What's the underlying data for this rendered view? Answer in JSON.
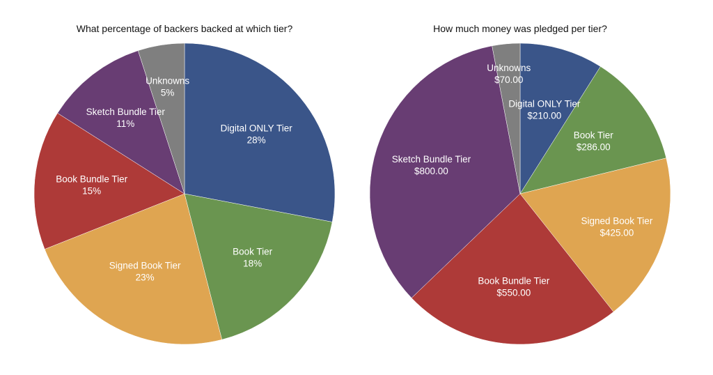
{
  "chart_data": [
    {
      "type": "pie",
      "title": "What percentage of backers backed at which tier?",
      "slices": [
        {
          "label": "Digital ONLY Tier",
          "value": 28,
          "display": "28%",
          "color": "#3A5589"
        },
        {
          "label": "Book Tier",
          "value": 18,
          "display": "18%",
          "color": "#6A9550"
        },
        {
          "label": "Signed Book Tier",
          "value": 23,
          "display": "23%",
          "color": "#DFA551"
        },
        {
          "label": "Book Bundle Tier",
          "value": 15,
          "display": "15%",
          "color": "#AE3A38"
        },
        {
          "label": "Sketch Bundle Tier",
          "value": 11,
          "display": "11%",
          "color": "#683D73"
        },
        {
          "label": "Unknowns",
          "value": 5,
          "display": "5%",
          "color": "#7F7F7F"
        }
      ]
    },
    {
      "type": "pie",
      "title": "How much money was pledged per tier?",
      "slices": [
        {
          "label": "Digital ONLY Tier",
          "value": 210.0,
          "display": "$210.00",
          "color": "#3A5589"
        },
        {
          "label": "Book Tier",
          "value": 286.0,
          "display": "$286.00",
          "color": "#6A9550"
        },
        {
          "label": "Signed Book Tier",
          "value": 425.0,
          "display": "$425.00",
          "color": "#DFA551"
        },
        {
          "label": "Book Bundle Tier",
          "value": 550.0,
          "display": "$550.00",
          "color": "#AE3A38"
        },
        {
          "label": "Sketch Bundle Tier",
          "value": 800.0,
          "display": "$800.00",
          "color": "#683D73"
        },
        {
          "label": "Unknowns",
          "value": 70.0,
          "display": "$70.00",
          "color": "#7F7F7F"
        }
      ]
    }
  ]
}
